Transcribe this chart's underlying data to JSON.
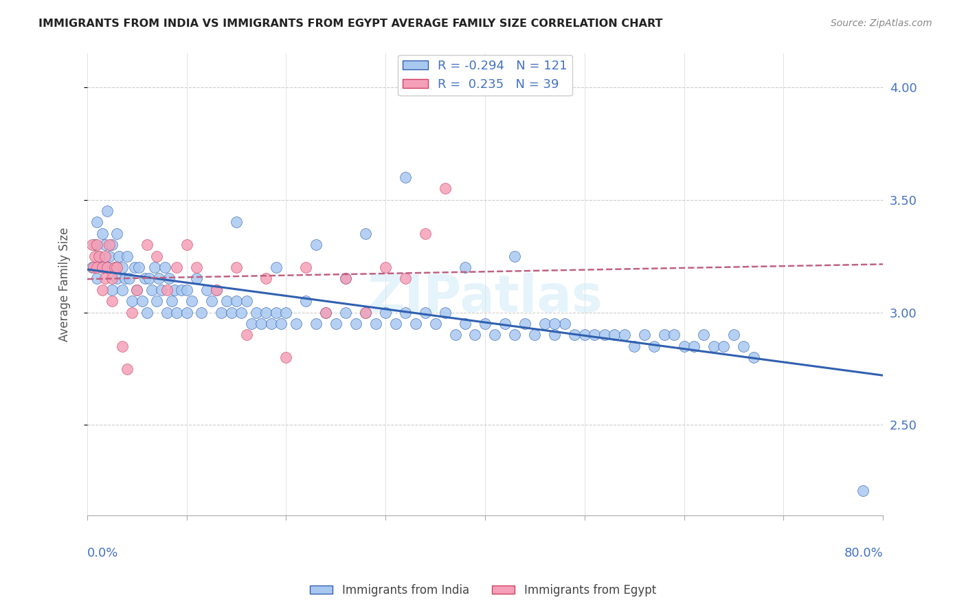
{
  "title": "IMMIGRANTS FROM INDIA VS IMMIGRANTS FROM EGYPT AVERAGE FAMILY SIZE CORRELATION CHART",
  "source": "Source: ZipAtlas.com",
  "ylabel": "Average Family Size",
  "xmin": 0.0,
  "xmax": 0.8,
  "ymin": 2.1,
  "ymax": 4.15,
  "yticks_right": [
    2.5,
    3.0,
    3.5,
    4.0
  ],
  "india_R": -0.294,
  "india_N": 121,
  "egypt_R": 0.235,
  "egypt_N": 39,
  "india_color": "#a8c8f0",
  "india_line_color": "#3060b0",
  "egypt_color": "#f4a0b8",
  "egypt_line_color": "#d04060",
  "egypt_trend_color": "#c06080",
  "watermark": "ZIPatlas",
  "grid_color": "#cccccc",
  "title_color": "#222222",
  "axis_color": "#4472c4",
  "india_scatter_x": [
    0.005,
    0.008,
    0.01,
    0.01,
    0.012,
    0.015,
    0.015,
    0.018,
    0.02,
    0.02,
    0.022,
    0.025,
    0.025,
    0.028,
    0.03,
    0.03,
    0.032,
    0.035,
    0.035,
    0.038,
    0.04,
    0.042,
    0.045,
    0.048,
    0.05,
    0.052,
    0.055,
    0.058,
    0.06,
    0.062,
    0.065,
    0.068,
    0.07,
    0.072,
    0.075,
    0.078,
    0.08,
    0.082,
    0.085,
    0.088,
    0.09,
    0.095,
    0.1,
    0.1,
    0.105,
    0.11,
    0.115,
    0.12,
    0.125,
    0.13,
    0.135,
    0.14,
    0.145,
    0.15,
    0.155,
    0.16,
    0.165,
    0.17,
    0.175,
    0.18,
    0.185,
    0.19,
    0.195,
    0.2,
    0.21,
    0.22,
    0.23,
    0.24,
    0.25,
    0.26,
    0.27,
    0.28,
    0.29,
    0.3,
    0.31,
    0.32,
    0.33,
    0.34,
    0.35,
    0.36,
    0.37,
    0.38,
    0.39,
    0.4,
    0.41,
    0.42,
    0.43,
    0.44,
    0.45,
    0.46,
    0.47,
    0.48,
    0.49,
    0.5,
    0.51,
    0.52,
    0.53,
    0.54,
    0.55,
    0.56,
    0.57,
    0.58,
    0.59,
    0.6,
    0.61,
    0.62,
    0.63,
    0.64,
    0.65,
    0.66,
    0.67,
    0.28,
    0.32,
    0.38,
    0.43,
    0.47,
    0.15,
    0.19,
    0.23,
    0.26,
    0.78
  ],
  "india_scatter_y": [
    3.2,
    3.3,
    3.15,
    3.4,
    3.25,
    3.2,
    3.35,
    3.3,
    3.2,
    3.45,
    3.25,
    3.1,
    3.3,
    3.2,
    3.15,
    3.35,
    3.25,
    3.1,
    3.2,
    3.15,
    3.25,
    3.15,
    3.05,
    3.2,
    3.1,
    3.2,
    3.05,
    3.15,
    3.0,
    3.15,
    3.1,
    3.2,
    3.05,
    3.15,
    3.1,
    3.2,
    3.0,
    3.15,
    3.05,
    3.1,
    3.0,
    3.1,
    3.0,
    3.1,
    3.05,
    3.15,
    3.0,
    3.1,
    3.05,
    3.1,
    3.0,
    3.05,
    3.0,
    3.05,
    3.0,
    3.05,
    2.95,
    3.0,
    2.95,
    3.0,
    2.95,
    3.0,
    2.95,
    3.0,
    2.95,
    3.05,
    2.95,
    3.0,
    2.95,
    3.0,
    2.95,
    3.0,
    2.95,
    3.0,
    2.95,
    3.0,
    2.95,
    3.0,
    2.95,
    3.0,
    2.9,
    2.95,
    2.9,
    2.95,
    2.9,
    2.95,
    2.9,
    2.95,
    2.9,
    2.95,
    2.9,
    2.95,
    2.9,
    2.9,
    2.9,
    2.9,
    2.9,
    2.9,
    2.85,
    2.9,
    2.85,
    2.9,
    2.9,
    2.85,
    2.85,
    2.9,
    2.85,
    2.85,
    2.9,
    2.85,
    2.8,
    3.35,
    3.6,
    3.2,
    3.25,
    2.95,
    3.4,
    3.2,
    3.3,
    3.15,
    2.21
  ],
  "egypt_scatter_x": [
    0.005,
    0.006,
    0.008,
    0.01,
    0.01,
    0.012,
    0.015,
    0.015,
    0.018,
    0.018,
    0.02,
    0.022,
    0.025,
    0.025,
    0.028,
    0.03,
    0.035,
    0.04,
    0.045,
    0.05,
    0.06,
    0.07,
    0.08,
    0.09,
    0.1,
    0.11,
    0.13,
    0.15,
    0.16,
    0.18,
    0.2,
    0.22,
    0.24,
    0.26,
    0.28,
    0.3,
    0.32,
    0.34,
    0.36
  ],
  "egypt_scatter_y": [
    3.3,
    3.2,
    3.25,
    3.3,
    3.2,
    3.25,
    3.2,
    3.1,
    3.25,
    3.15,
    3.2,
    3.3,
    3.15,
    3.05,
    3.2,
    3.2,
    2.85,
    2.75,
    3.0,
    3.1,
    3.3,
    3.25,
    3.1,
    3.2,
    3.3,
    3.2,
    3.1,
    3.2,
    2.9,
    3.15,
    2.8,
    3.2,
    3.0,
    3.15,
    3.0,
    3.2,
    3.15,
    3.35,
    3.55
  ]
}
